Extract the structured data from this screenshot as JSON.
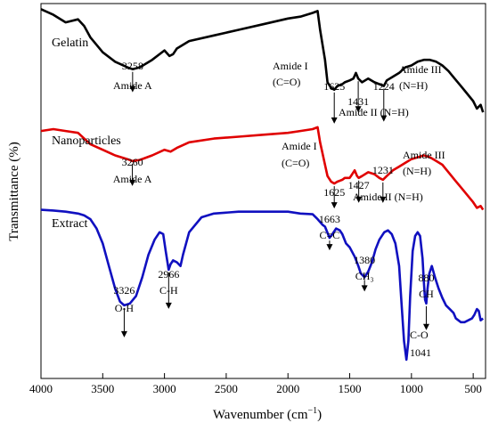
{
  "chart_data": {
    "type": "line",
    "xlabel": "Wavenumber (cm",
    "xlabel_sup": "−1",
    "xlabel_end": ")",
    "ylabel": "Transmittance (%)",
    "xlim": [
      4000,
      400
    ],
    "x_reversed": true,
    "xticks": [
      4000,
      3500,
      3000,
      2500,
      2000,
      1500,
      1000,
      500
    ],
    "yticks_shown": false,
    "grid": false,
    "series": [
      {
        "name": "Gelatin",
        "color": "#000000",
        "points": [
          [
            4000,
            0.985
          ],
          [
            3900,
            0.97
          ],
          [
            3800,
            0.95
          ],
          [
            3700,
            0.958
          ],
          [
            3650,
            0.94
          ],
          [
            3600,
            0.91
          ],
          [
            3500,
            0.87
          ],
          [
            3400,
            0.845
          ],
          [
            3300,
            0.83
          ],
          [
            3258,
            0.825
          ],
          [
            3200,
            0.83
          ],
          [
            3100,
            0.85
          ],
          [
            3000,
            0.875
          ],
          [
            2960,
            0.86
          ],
          [
            2930,
            0.865
          ],
          [
            2900,
            0.88
          ],
          [
            2800,
            0.9
          ],
          [
            2600,
            0.915
          ],
          [
            2400,
            0.93
          ],
          [
            2200,
            0.945
          ],
          [
            2000,
            0.96
          ],
          [
            1900,
            0.965
          ],
          [
            1800,
            0.975
          ],
          [
            1760,
            0.98
          ],
          [
            1740,
            0.93
          ],
          [
            1700,
            0.85
          ],
          [
            1680,
            0.79
          ],
          [
            1650,
            0.775
          ],
          [
            1625,
            0.77
          ],
          [
            1600,
            0.78
          ],
          [
            1560,
            0.785
          ],
          [
            1540,
            0.79
          ],
          [
            1500,
            0.795
          ],
          [
            1470,
            0.8
          ],
          [
            1450,
            0.815
          ],
          [
            1431,
            0.8
          ],
          [
            1400,
            0.79
          ],
          [
            1350,
            0.8
          ],
          [
            1300,
            0.79
          ],
          [
            1260,
            0.785
          ],
          [
            1224,
            0.78
          ],
          [
            1200,
            0.795
          ],
          [
            1150,
            0.805
          ],
          [
            1100,
            0.815
          ],
          [
            1050,
            0.83
          ],
          [
            1000,
            0.835
          ],
          [
            950,
            0.845
          ],
          [
            900,
            0.85
          ],
          [
            850,
            0.85
          ],
          [
            800,
            0.845
          ],
          [
            750,
            0.835
          ],
          [
            700,
            0.82
          ],
          [
            650,
            0.8
          ],
          [
            600,
            0.78
          ],
          [
            550,
            0.76
          ],
          [
            500,
            0.74
          ],
          [
            470,
            0.72
          ],
          [
            440,
            0.73
          ],
          [
            420,
            0.71
          ]
        ]
      },
      {
        "name": "Nanoparticles",
        "color": "#e00000",
        "points": [
          [
            4000,
            0.66
          ],
          [
            3900,
            0.665
          ],
          [
            3800,
            0.66
          ],
          [
            3700,
            0.655
          ],
          [
            3650,
            0.64
          ],
          [
            3600,
            0.625
          ],
          [
            3500,
            0.61
          ],
          [
            3400,
            0.595
          ],
          [
            3300,
            0.585
          ],
          [
            3260,
            0.58
          ],
          [
            3200,
            0.583
          ],
          [
            3100,
            0.595
          ],
          [
            3000,
            0.61
          ],
          [
            2950,
            0.605
          ],
          [
            2900,
            0.615
          ],
          [
            2800,
            0.63
          ],
          [
            2600,
            0.64
          ],
          [
            2400,
            0.645
          ],
          [
            2200,
            0.65
          ],
          [
            2000,
            0.655
          ],
          [
            1900,
            0.66
          ],
          [
            1800,
            0.665
          ],
          [
            1760,
            0.67
          ],
          [
            1740,
            0.63
          ],
          [
            1700,
            0.57
          ],
          [
            1680,
            0.54
          ],
          [
            1650,
            0.525
          ],
          [
            1625,
            0.52
          ],
          [
            1600,
            0.525
          ],
          [
            1560,
            0.53
          ],
          [
            1540,
            0.535
          ],
          [
            1500,
            0.535
          ],
          [
            1480,
            0.545
          ],
          [
            1460,
            0.555
          ],
          [
            1440,
            0.54
          ],
          [
            1427,
            0.535
          ],
          [
            1400,
            0.54
          ],
          [
            1350,
            0.55
          ],
          [
            1300,
            0.545
          ],
          [
            1260,
            0.535
          ],
          [
            1231,
            0.53
          ],
          [
            1200,
            0.54
          ],
          [
            1150,
            0.555
          ],
          [
            1100,
            0.565
          ],
          [
            1050,
            0.575
          ],
          [
            1000,
            0.585
          ],
          [
            950,
            0.59
          ],
          [
            900,
            0.595
          ],
          [
            850,
            0.59
          ],
          [
            800,
            0.58
          ],
          [
            750,
            0.57
          ],
          [
            700,
            0.55
          ],
          [
            650,
            0.53
          ],
          [
            600,
            0.51
          ],
          [
            550,
            0.49
          ],
          [
            500,
            0.47
          ],
          [
            470,
            0.455
          ],
          [
            440,
            0.46
          ],
          [
            420,
            0.45
          ]
        ]
      },
      {
        "name": "Extract",
        "color": "#1010c0",
        "points": [
          [
            4000,
            0.45
          ],
          [
            3900,
            0.448
          ],
          [
            3800,
            0.445
          ],
          [
            3700,
            0.44
          ],
          [
            3650,
            0.435
          ],
          [
            3600,
            0.425
          ],
          [
            3550,
            0.4
          ],
          [
            3500,
            0.36
          ],
          [
            3450,
            0.3
          ],
          [
            3400,
            0.24
          ],
          [
            3360,
            0.205
          ],
          [
            3326,
            0.195
          ],
          [
            3280,
            0.2
          ],
          [
            3230,
            0.22
          ],
          [
            3180,
            0.27
          ],
          [
            3130,
            0.33
          ],
          [
            3080,
            0.37
          ],
          [
            3040,
            0.39
          ],
          [
            3010,
            0.385
          ],
          [
            2990,
            0.34
          ],
          [
            2966,
            0.29
          ],
          [
            2950,
            0.305
          ],
          [
            2930,
            0.315
          ],
          [
            2900,
            0.31
          ],
          [
            2870,
            0.3
          ],
          [
            2850,
            0.33
          ],
          [
            2800,
            0.39
          ],
          [
            2700,
            0.43
          ],
          [
            2600,
            0.44
          ],
          [
            2400,
            0.445
          ],
          [
            2200,
            0.445
          ],
          [
            2000,
            0.445
          ],
          [
            1900,
            0.44
          ],
          [
            1800,
            0.438
          ],
          [
            1760,
            0.425
          ],
          [
            1720,
            0.41
          ],
          [
            1700,
            0.405
          ],
          [
            1663,
            0.375
          ],
          [
            1640,
            0.385
          ],
          [
            1610,
            0.4
          ],
          [
            1580,
            0.395
          ],
          [
            1560,
            0.385
          ],
          [
            1530,
            0.36
          ],
          [
            1500,
            0.35
          ],
          [
            1460,
            0.325
          ],
          [
            1430,
            0.3
          ],
          [
            1410,
            0.28
          ],
          [
            1380,
            0.27
          ],
          [
            1350,
            0.285
          ],
          [
            1320,
            0.31
          ],
          [
            1290,
            0.345
          ],
          [
            1260,
            0.37
          ],
          [
            1220,
            0.39
          ],
          [
            1190,
            0.395
          ],
          [
            1160,
            0.385
          ],
          [
            1130,
            0.36
          ],
          [
            1100,
            0.3
          ],
          [
            1080,
            0.2
          ],
          [
            1060,
            0.1
          ],
          [
            1041,
            0.05
          ],
          [
            1025,
            0.1
          ],
          [
            1010,
            0.22
          ],
          [
            990,
            0.34
          ],
          [
            970,
            0.38
          ],
          [
            950,
            0.39
          ],
          [
            930,
            0.38
          ],
          [
            910,
            0.32
          ],
          [
            900,
            0.26
          ],
          [
            890,
            0.21
          ],
          [
            880,
            0.2
          ],
          [
            870,
            0.24
          ],
          [
            855,
            0.28
          ],
          [
            835,
            0.3
          ],
          [
            810,
            0.27
          ],
          [
            780,
            0.24
          ],
          [
            750,
            0.215
          ],
          [
            720,
            0.195
          ],
          [
            690,
            0.185
          ],
          [
            660,
            0.175
          ],
          [
            640,
            0.16
          ],
          [
            620,
            0.155
          ],
          [
            600,
            0.15
          ],
          [
            570,
            0.15
          ],
          [
            540,
            0.155
          ],
          [
            510,
            0.16
          ],
          [
            490,
            0.17
          ],
          [
            470,
            0.185
          ],
          [
            455,
            0.18
          ],
          [
            440,
            0.155
          ],
          [
            420,
            0.16
          ]
        ]
      }
    ],
    "series_labels": [
      {
        "text": "Gelatin",
        "series": 0
      },
      {
        "text": "Nanoparticles",
        "series": 1
      },
      {
        "text": "Extract",
        "series": 2
      }
    ],
    "annotations": [
      {
        "series": 0,
        "x": 3258,
        "arrow": "down",
        "lines": [
          "3258",
          "Amide A"
        ]
      },
      {
        "series": 0,
        "x": 1625,
        "arrow": "down",
        "lines": [
          "1625"
        ]
      },
      {
        "series": 0,
        "x": 1431,
        "arrow": "down",
        "lines": [
          "1431"
        ]
      },
      {
        "series": 0,
        "x": 1224,
        "arrow": "down",
        "lines": [
          "1224"
        ]
      },
      {
        "series": 0,
        "x": 1740,
        "lines": [
          "Amide I",
          "(C=O)"
        ]
      },
      {
        "series": 0,
        "x": 1400,
        "lines": [
          "Amide II (N=H)"
        ]
      },
      {
        "series": 0,
        "x": 1100,
        "lines": [
          "Amide III",
          "(N=H)"
        ]
      },
      {
        "series": 1,
        "x": 3260,
        "arrow": "down",
        "lines": [
          "3260",
          "Amide A"
        ]
      },
      {
        "series": 1,
        "x": 1625,
        "arrow": "down",
        "lines": [
          "1625"
        ]
      },
      {
        "series": 1,
        "x": 1427,
        "arrow": "down",
        "lines": [
          "1427"
        ]
      },
      {
        "series": 1,
        "x": 1231,
        "arrow": "down",
        "lines": [
          "1231"
        ]
      },
      {
        "series": 1,
        "x": 1740,
        "lines": [
          "Amide I",
          "(C=O)"
        ]
      },
      {
        "series": 1,
        "x": 1300,
        "lines": [
          "Amide II (N=H)"
        ]
      },
      {
        "series": 1,
        "x": 1100,
        "lines": [
          "Amide III",
          "(N=H)"
        ]
      },
      {
        "series": 2,
        "x": 3326,
        "arrow": "down",
        "lines": [
          "3326",
          "O-H"
        ]
      },
      {
        "series": 2,
        "x": 2966,
        "arrow": "down",
        "lines": [
          "2966",
          "C-H"
        ]
      },
      {
        "series": 2,
        "x": 1663,
        "arrow": "down",
        "lines": [
          "1663",
          "C=C"
        ]
      },
      {
        "series": 2,
        "x": 1380,
        "arrow": "down",
        "lines": [
          "1380",
          "CH₃"
        ]
      },
      {
        "series": 2,
        "x": 880,
        "arrow": "down",
        "lines": [
          "880",
          "CH"
        ]
      },
      {
        "series": 2,
        "x": 1041,
        "lines": [
          "C-O",
          "1041"
        ]
      }
    ]
  }
}
